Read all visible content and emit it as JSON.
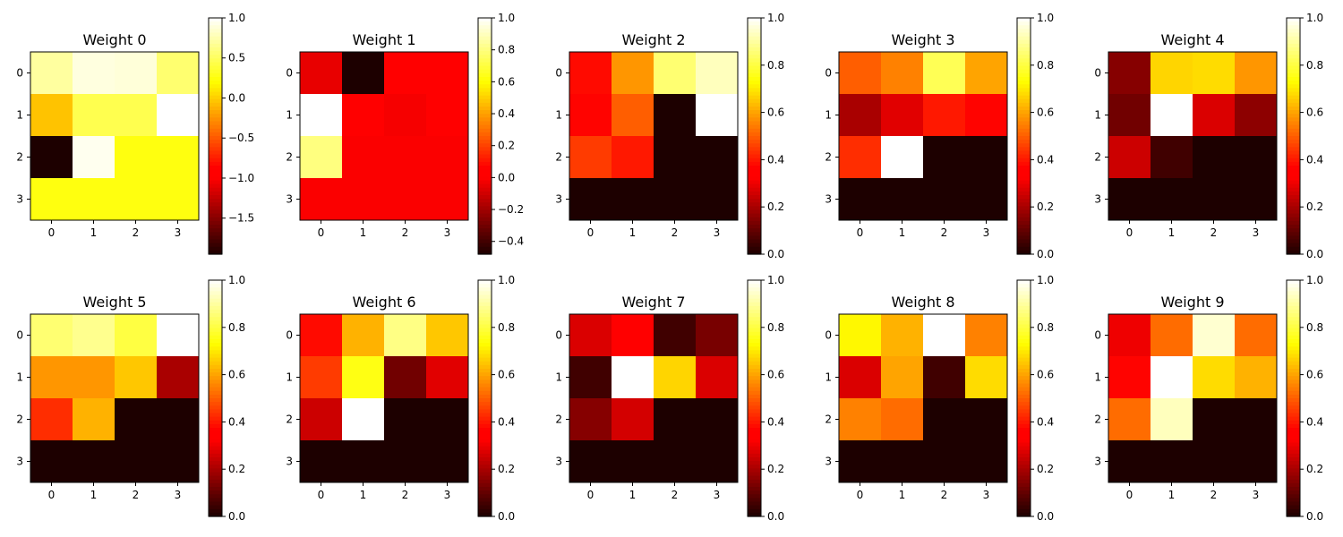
{
  "chart_data": [
    {
      "type": "heatmap",
      "title": "Weight 0",
      "x_ticks": [
        "0",
        "1",
        "2",
        "3"
      ],
      "y_ticks": [
        "0",
        "1",
        "2",
        "3"
      ],
      "colormap": "hot",
      "colorbar": {
        "range": [
          -1.95,
          1.0
        ],
        "ticks": [
          "1.0",
          "0.5",
          "0.0",
          "−0.5",
          "−1.0",
          "−1.5"
        ],
        "tick_values": [
          1.0,
          0.5,
          0.0,
          -0.5,
          -1.0,
          -1.5
        ]
      },
      "values": [
        [
          0.7,
          0.9,
          0.88,
          0.55
        ],
        [
          -0.05,
          0.45,
          0.45,
          1.0
        ],
        [
          -1.95,
          0.95,
          0.25,
          0.25
        ],
        [
          0.25,
          0.25,
          0.25,
          0.25
        ]
      ]
    },
    {
      "type": "heatmap",
      "title": "Weight 1",
      "x_ticks": [
        "0",
        "1",
        "2",
        "3"
      ],
      "y_ticks": [
        "0",
        "1",
        "2",
        "3"
      ],
      "colormap": "hot",
      "colorbar": {
        "range": [
          -0.48,
          1.0
        ],
        "ticks": [
          "1.0",
          "0.8",
          "0.6",
          "0.4",
          "0.2",
          "0.0",
          "−0.2",
          "−0.4"
        ],
        "tick_values": [
          1.0,
          0.8,
          0.6,
          0.4,
          0.2,
          0.0,
          -0.2,
          -0.4
        ]
      },
      "values": [
        [
          -0.05,
          -0.48,
          0.0,
          0.0
        ],
        [
          1.0,
          0.05,
          -0.02,
          0.0
        ],
        [
          0.8,
          -0.01,
          -0.01,
          -0.01
        ],
        [
          -0.01,
          -0.01,
          -0.01,
          -0.01
        ]
      ]
    },
    {
      "type": "heatmap",
      "title": "Weight 2",
      "x_ticks": [
        "0",
        "1",
        "2",
        "3"
      ],
      "y_ticks": [
        "0",
        "1",
        "2",
        "3"
      ],
      "colormap": "hot",
      "colorbar": {
        "range": [
          0.0,
          1.0
        ],
        "ticks": [
          "1.0",
          "0.8",
          "0.6",
          "0.4",
          "0.2",
          "0.0"
        ],
        "tick_values": [
          1.0,
          0.8,
          0.6,
          0.4,
          0.2,
          0.0
        ]
      },
      "values": [
        [
          0.38,
          0.58,
          0.85,
          0.93
        ],
        [
          0.37,
          0.5,
          0.0,
          1.0
        ],
        [
          0.45,
          0.4,
          0.0,
          0.0
        ],
        [
          0.0,
          0.0,
          0.0,
          0.0
        ]
      ]
    },
    {
      "type": "heatmap",
      "title": "Weight 3",
      "x_ticks": [
        "0",
        "1",
        "2",
        "3"
      ],
      "y_ticks": [
        "0",
        "1",
        "2",
        "3"
      ],
      "colormap": "hot",
      "colorbar": {
        "range": [
          0.0,
          1.0
        ],
        "ticks": [
          "1.0",
          "0.8",
          "0.6",
          "0.4",
          "0.2",
          "0.0"
        ],
        "tick_values": [
          1.0,
          0.8,
          0.6,
          0.4,
          0.2,
          0.0
        ]
      },
      "values": [
        [
          0.5,
          0.55,
          0.82,
          0.6
        ],
        [
          0.2,
          0.28,
          0.4,
          0.37
        ],
        [
          0.43,
          1.0,
          0.0,
          0.0
        ],
        [
          0.0,
          0.0,
          0.0,
          0.0
        ]
      ]
    },
    {
      "type": "heatmap",
      "title": "Weight 4",
      "x_ticks": [
        "0",
        "1",
        "2",
        "3"
      ],
      "y_ticks": [
        "0",
        "1",
        "2",
        "3"
      ],
      "colormap": "hot",
      "colorbar": {
        "range": [
          0.0,
          1.0
        ],
        "ticks": [
          "1.0",
          "0.8",
          "0.6",
          "0.4",
          "0.2",
          "0.0"
        ],
        "tick_values": [
          1.0,
          0.8,
          0.6,
          0.4,
          0.2,
          0.0
        ]
      },
      "values": [
        [
          0.15,
          0.67,
          0.68,
          0.58
        ],
        [
          0.12,
          1.0,
          0.27,
          0.16
        ],
        [
          0.25,
          0.05,
          0.0,
          0.0
        ],
        [
          0.0,
          0.0,
          0.0,
          0.0
        ]
      ]
    },
    {
      "type": "heatmap",
      "title": "Weight 5",
      "x_ticks": [
        "0",
        "1",
        "2",
        "3"
      ],
      "y_ticks": [
        "0",
        "1",
        "2",
        "3"
      ],
      "colormap": "hot",
      "colorbar": {
        "range": [
          0.0,
          1.0
        ],
        "ticks": [
          "1.0",
          "0.8",
          "0.6",
          "0.4",
          "0.2",
          "0.0"
        ],
        "tick_values": [
          1.0,
          0.8,
          0.6,
          0.4,
          0.2,
          0.0
        ]
      },
      "values": [
        [
          0.85,
          0.88,
          0.8,
          1.0
        ],
        [
          0.58,
          0.58,
          0.65,
          0.2
        ],
        [
          0.43,
          0.62,
          0.0,
          0.0
        ],
        [
          0.0,
          0.0,
          0.0,
          0.0
        ]
      ]
    },
    {
      "type": "heatmap",
      "title": "Weight 6",
      "x_ticks": [
        "0",
        "1",
        "2",
        "3"
      ],
      "y_ticks": [
        "0",
        "1",
        "2",
        "3"
      ],
      "colormap": "hot",
      "colorbar": {
        "range": [
          0.0,
          1.0
        ],
        "ticks": [
          "1.0",
          "0.8",
          "0.6",
          "0.4",
          "0.2",
          "0.0"
        ],
        "tick_values": [
          1.0,
          0.8,
          0.6,
          0.4,
          0.2,
          0.0
        ]
      },
      "values": [
        [
          0.38,
          0.62,
          0.87,
          0.65
        ],
        [
          0.45,
          0.75,
          0.12,
          0.28
        ],
        [
          0.25,
          1.0,
          0.0,
          0.0
        ],
        [
          0.0,
          0.0,
          0.0,
          0.0
        ]
      ]
    },
    {
      "type": "heatmap",
      "title": "Weight 7",
      "x_ticks": [
        "0",
        "1",
        "2",
        "3"
      ],
      "y_ticks": [
        "0",
        "1",
        "2",
        "3"
      ],
      "colormap": "hot",
      "colorbar": {
        "range": [
          0.0,
          1.0
        ],
        "ticks": [
          "1.0",
          "0.8",
          "0.6",
          "0.4",
          "0.2",
          "0.0"
        ],
        "tick_values": [
          1.0,
          0.8,
          0.6,
          0.4,
          0.2,
          0.0
        ]
      },
      "values": [
        [
          0.27,
          0.33,
          0.05,
          0.13
        ],
        [
          0.05,
          1.0,
          0.67,
          0.27
        ],
        [
          0.15,
          0.26,
          0.0,
          0.0
        ],
        [
          0.0,
          0.0,
          0.0,
          0.0
        ]
      ]
    },
    {
      "type": "heatmap",
      "title": "Weight 8",
      "x_ticks": [
        "0",
        "1",
        "2",
        "3"
      ],
      "y_ticks": [
        "0",
        "1",
        "2",
        "3"
      ],
      "colormap": "hot",
      "colorbar": {
        "range": [
          0.0,
          1.0
        ],
        "ticks": [
          "1.0",
          "0.8",
          "0.6",
          "0.4",
          "0.2",
          "0.0"
        ],
        "tick_values": [
          1.0,
          0.8,
          0.6,
          0.4,
          0.2,
          0.0
        ]
      },
      "values": [
        [
          0.72,
          0.62,
          1.0,
          0.55
        ],
        [
          0.27,
          0.6,
          0.05,
          0.68
        ],
        [
          0.55,
          0.52,
          0.0,
          0.0
        ],
        [
          0.0,
          0.0,
          0.0,
          0.0
        ]
      ]
    },
    {
      "type": "heatmap",
      "title": "Weight 9",
      "x_ticks": [
        "0",
        "1",
        "2",
        "3"
      ],
      "y_ticks": [
        "0",
        "1",
        "2",
        "3"
      ],
      "colormap": "hot",
      "colorbar": {
        "range": [
          0.0,
          1.0
        ],
        "ticks": [
          "1.0",
          "0.8",
          "0.6",
          "0.4",
          "0.2",
          "0.0"
        ],
        "tick_values": [
          1.0,
          0.8,
          0.6,
          0.4,
          0.2,
          0.0
        ]
      },
      "values": [
        [
          0.3,
          0.52,
          0.95,
          0.52
        ],
        [
          0.37,
          1.0,
          0.68,
          0.62
        ],
        [
          0.52,
          0.93,
          0.0,
          0.0
        ],
        [
          0.0,
          0.0,
          0.0,
          0.0
        ]
      ]
    }
  ]
}
